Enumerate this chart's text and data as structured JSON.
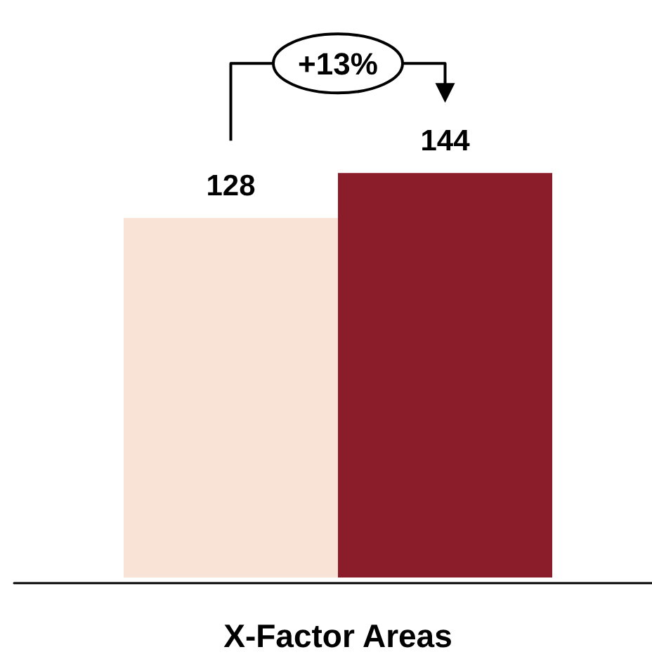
{
  "chart_data": {
    "type": "bar",
    "categories": [
      null,
      null
    ],
    "xlabel": "X-Factor Areas",
    "values": [
      128,
      144
    ],
    "colors": [
      "#f9e3d6",
      "#8b1c2a"
    ],
    "data_labels": true,
    "grid": false,
    "annotations": [
      "+13%"
    ]
  }
}
